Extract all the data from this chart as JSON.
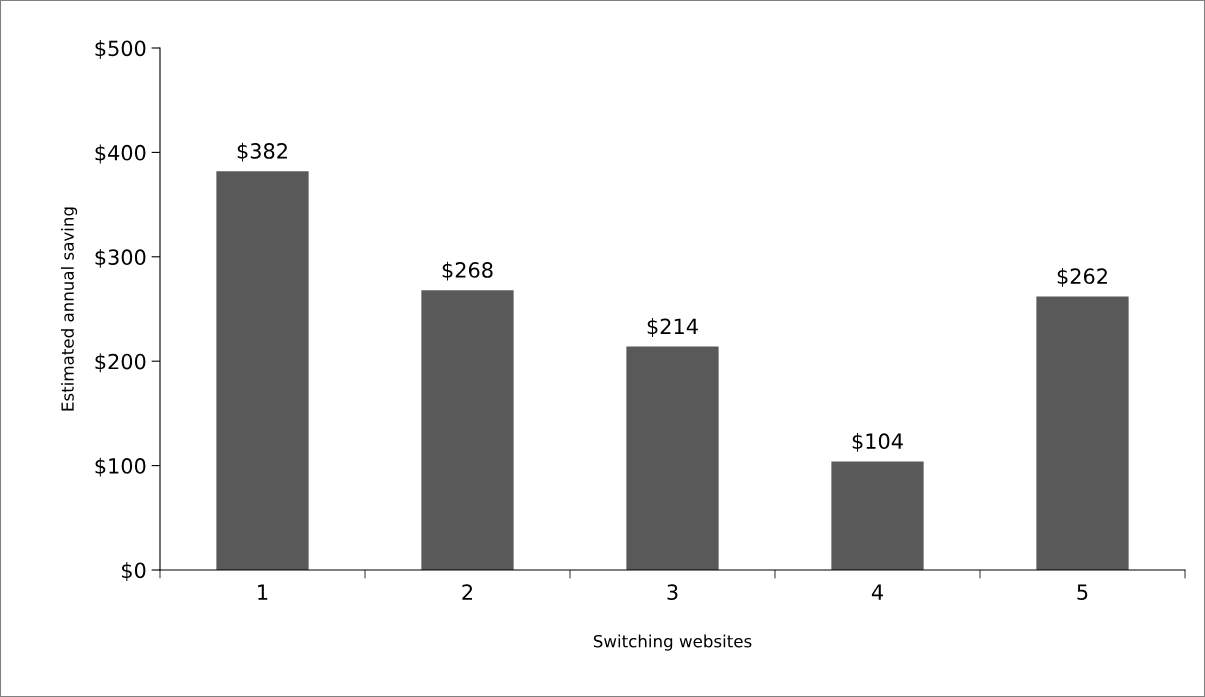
{
  "chart_data": {
    "type": "bar",
    "xlabel": "Switching websites",
    "ylabel": "Estimated annual saving",
    "categories": [
      "1",
      "2",
      "3",
      "4",
      "5"
    ],
    "series": [
      {
        "color": "#595959",
        "values": [
          382,
          268,
          214,
          104,
          262
        ],
        "value_labels": [
          "$382",
          "$268",
          "$214",
          "$104",
          "$262"
        ]
      }
    ],
    "ylim": [
      0,
      500
    ],
    "yticks": [
      {
        "value": 0,
        "label": "$0"
      },
      {
        "value": 100,
        "label": "$100"
      },
      {
        "value": 200,
        "label": "$200"
      },
      {
        "value": 300,
        "label": "$300"
      },
      {
        "value": 400,
        "label": "$400"
      },
      {
        "value": 500,
        "label": "$500"
      }
    ],
    "grid": false
  }
}
